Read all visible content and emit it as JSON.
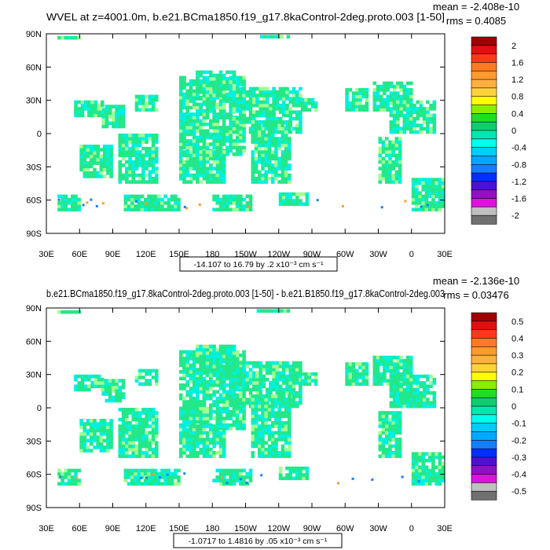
{
  "chart_data": [
    {
      "type": "heatmap",
      "title": "WVEL at z=4001.0m, b.e21.BCma1850.f19_g17.8kaControl-2deg.proto.003 [1-50]",
      "stats": [
        "mean = -2.408e-10",
        "rms = 0.4085"
      ],
      "y_ticks": [
        "90N",
        "60N",
        "30N",
        "0",
        "30S",
        "60S",
        "90S"
      ],
      "x_ticks": [
        "30E",
        "60E",
        "90E",
        "120E",
        "150E",
        "180",
        "150W",
        "120W",
        "90W",
        "60W",
        "30W",
        "0",
        "30E"
      ],
      "xlim": [
        30,
        390
      ],
      "ylim": [
        -90,
        90
      ],
      "range_label": "-14.107 to 16.79 by .2 x10⁻³ cm s⁻¹",
      "colorbar": {
        "labels": [
          "2",
          "1.6",
          "1.2",
          "0.8",
          "0.4",
          "0",
          "-0.4",
          "-0.8",
          "-1.2",
          "-1.6",
          "-2"
        ],
        "colors": [
          "#a00000",
          "#e01010",
          "#ff3a1a",
          "#ff7a20",
          "#ff9a30",
          "#ffb040",
          "#ffd23c",
          "#ffff00",
          "#8aee00",
          "#22dd22",
          "#10cc70",
          "#00e8b0",
          "#00ffee",
          "#00ccff",
          "#00a8ff",
          "#1480ff",
          "#0030ff",
          "#5010d0",
          "#9010c8",
          "#e010e0",
          "#c0c0c0",
          "#707070"
        ]
      }
    },
    {
      "type": "heatmap",
      "title": "b.e21.BCma1850.f19_g17.8kaControl-2deg.proto.003 [1-50] - b.e21.B1850.f19_g17.8kaControl-2deg.003",
      "stats": [
        "mean = -2.136e-10",
        "rms = 0.03476"
      ],
      "y_ticks": [
        "90N",
        "60N",
        "30N",
        "0",
        "30S",
        "60S",
        "90S"
      ],
      "x_ticks": [
        "30E",
        "60E",
        "90E",
        "120E",
        "150E",
        "180",
        "150W",
        "120W",
        "90W",
        "60W",
        "30W",
        "0",
        "30E"
      ],
      "xlim": [
        30,
        390
      ],
      "ylim": [
        -90,
        90
      ],
      "range_label": "-1.0717 to 1.4816 by .05 x10⁻³ cm s⁻¹",
      "colorbar": {
        "labels": [
          "0.5",
          "0.4",
          "0.3",
          "0.2",
          "0.1",
          "0",
          "-0.1",
          "-0.2",
          "-0.3",
          "-0.4",
          "-0.5"
        ],
        "colors": [
          "#a00000",
          "#e01010",
          "#ff3a1a",
          "#ff7a20",
          "#ff9a30",
          "#ffb040",
          "#ffd23c",
          "#ffff00",
          "#8aee00",
          "#22dd22",
          "#10cc70",
          "#00e8b0",
          "#00ffee",
          "#00ccff",
          "#00a8ff",
          "#1480ff",
          "#0030ff",
          "#5010d0",
          "#9010c8",
          "#e010e0",
          "#c0c0c0",
          "#707070"
        ]
      }
    }
  ],
  "colors": {
    "field_main": "#22e88a",
    "field_alt": "#00f0e0",
    "field_light": "#a0ff90",
    "positive_edge": "#ff9a30",
    "negative_edge": "#1480ff"
  }
}
